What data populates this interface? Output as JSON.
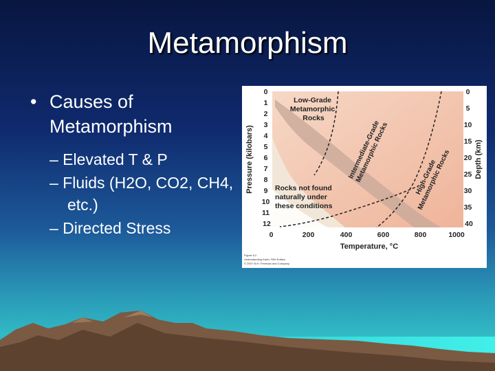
{
  "title": "Metamorphism",
  "bullets": {
    "main": "Causes of Metamorphism",
    "items": [
      "– Elevated T & P",
      "– Fluids (H2O, CO2, CH4, etc.)",
      "– Directed Stress"
    ]
  },
  "figure": {
    "pressure_label": "Pressure (kilobars)",
    "depth_label": "Depth (km)",
    "temperature_label": "Temperature, °C",
    "pressure_ticks": [
      "0",
      "1",
      "2",
      "3",
      "4",
      "5",
      "6",
      "7",
      "8",
      "9",
      "10",
      "11",
      "12"
    ],
    "depth_ticks": [
      "0",
      "5",
      "10",
      "15",
      "20",
      "25",
      "30",
      "35",
      "40"
    ],
    "temperature_ticks": [
      "0",
      "200",
      "400",
      "600",
      "800",
      "1000"
    ],
    "low_grade_label": [
      "Low-Grade",
      "Metamorphic",
      "Rocks"
    ],
    "intermediate_label": [
      "Intermediate-Grade",
      "Metamorphic Rocks"
    ],
    "high_grade_label": [
      "High-Grade",
      "Metamorphic Rocks"
    ],
    "not_found_label": [
      "Rocks not found",
      "naturally under",
      "these conditions"
    ],
    "credit": [
      "Figure 6-2",
      "Understanding Earth, Fifth Edition",
      "© 2007 W.H. Freeman and Company"
    ],
    "colors": {
      "pink": "#f4c4ad",
      "band": "#c9a99a",
      "background": "#f2e6d8"
    }
  }
}
